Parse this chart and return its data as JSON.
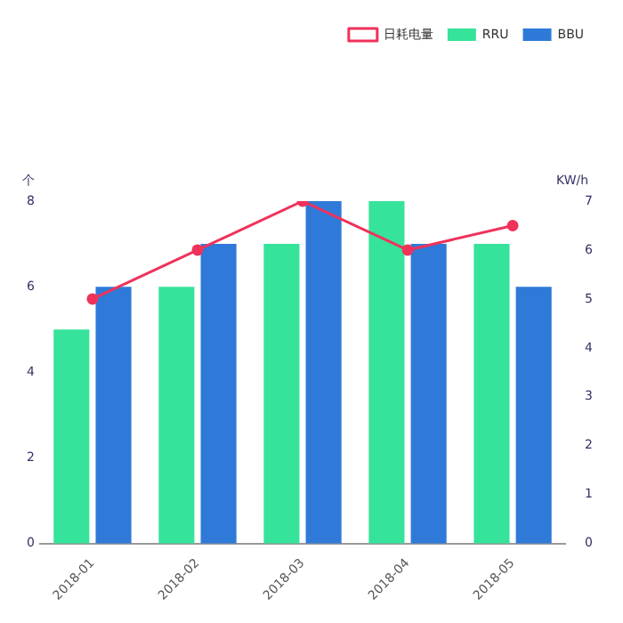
{
  "chart_data": {
    "type": "bar",
    "ylabel": "个",
    "y2label": "KW/h",
    "categories": [
      "2018-01",
      "2018-02",
      "2018-03",
      "2018-04",
      "2018-05"
    ],
    "series": [
      {
        "name": "RRU",
        "color": "#36e39b",
        "values": [
          5,
          6,
          7,
          8,
          7
        ]
      },
      {
        "name": "BBU",
        "color": "#2f7ad8",
        "values": [
          6,
          7,
          8,
          7,
          6
        ]
      },
      {
        "name": "日耗电量",
        "type": "line",
        "axis": "y2",
        "color": "#f0325a",
        "marker": "circle",
        "values": [
          5,
          6,
          7,
          6,
          6.5
        ]
      }
    ],
    "ylim": [
      0,
      8
    ],
    "yticks": [
      0,
      2,
      4,
      6,
      8
    ],
    "y2lim": [
      0,
      7
    ],
    "y2ticks": [
      0,
      1,
      2,
      3,
      4,
      5,
      6,
      7
    ],
    "grid": false,
    "legend": "top right"
  }
}
